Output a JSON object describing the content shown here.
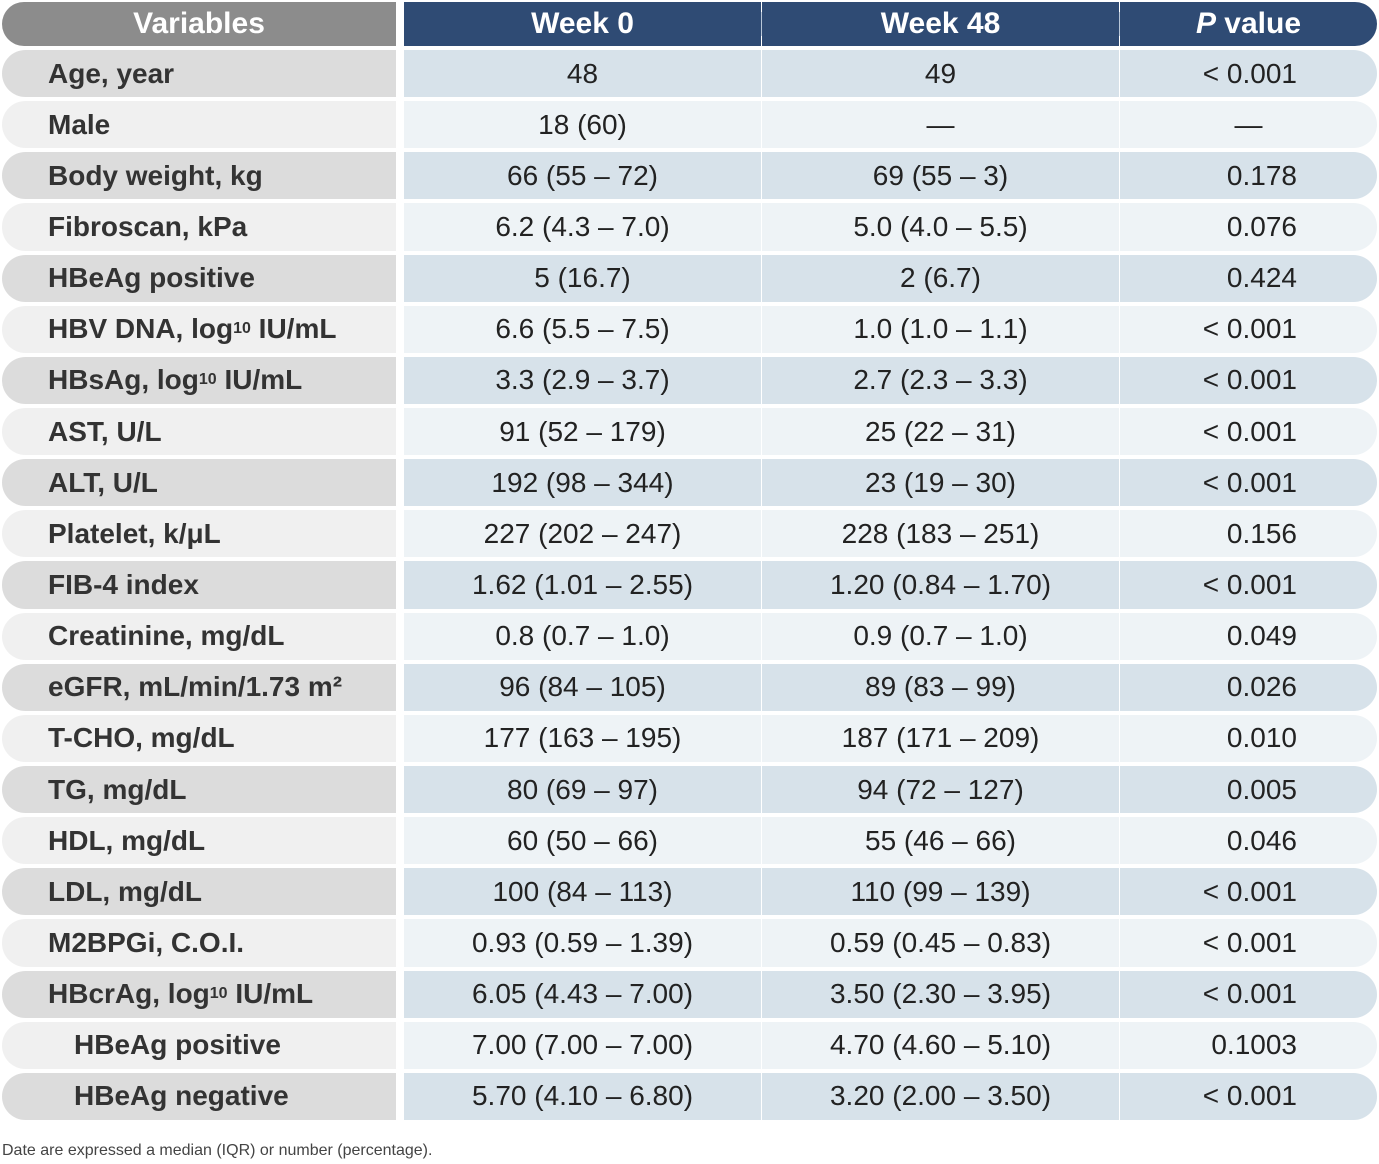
{
  "table": {
    "header": [
      "Variables",
      "Week 0",
      "Week 48",
      {
        "italic": "P",
        "rest": " value"
      }
    ],
    "rows": [
      {
        "variable": "Age, year",
        "week0": "48",
        "week48": "49",
        "p": "< 0.001"
      },
      {
        "variable": "Male",
        "week0": "18 (60)",
        "week48": "—",
        "p": "—"
      },
      {
        "variable": "Body weight, kg",
        "week0": "66 (55 – 72)",
        "week48": "69 (55 – 3)",
        "p": "0.178"
      },
      {
        "variable": "Fibroscan, kPa",
        "week0": "6.2 (4.3 – 7.0)",
        "week48": "5.0 (4.0 – 5.5)",
        "p": "0.076"
      },
      {
        "variable": "HBeAg positive",
        "week0": "5 (16.7)",
        "week48": "2 (6.7)",
        "p": "0.424"
      },
      {
        "variable": {
          "text": "HBV DNA, log",
          "sub": "10",
          "tail": " IU/mL"
        },
        "week0": "6.6 (5.5 – 7.5)",
        "week48": "1.0 (1.0 – 1.1)",
        "p": "< 0.001"
      },
      {
        "variable": {
          "text": "HBsAg, log",
          "sub": "10",
          "tail": " IU/mL"
        },
        "week0": "3.3 (2.9 – 3.7)",
        "week48": "2.7 (2.3 – 3.3)",
        "p": "< 0.001"
      },
      {
        "variable": "AST, U/L",
        "week0": "91 (52 – 179)",
        "week48": "25 (22 – 31)",
        "p": "< 0.001"
      },
      {
        "variable": "ALT, U/L",
        "week0": "192 (98 – 344)",
        "week48": "23 (19 – 30)",
        "p": "< 0.001"
      },
      {
        "variable": "Platelet, k/μL",
        "week0": "227 (202 – 247)",
        "week48": "228 (183 – 251)",
        "p": "0.156"
      },
      {
        "variable": "FIB-4 index",
        "week0": "1.62 (1.01 – 2.55)",
        "week48": "1.20 (0.84 – 1.70)",
        "p": "< 0.001"
      },
      {
        "variable": "Creatinine, mg/dL",
        "week0": "0.8 (0.7 – 1.0)",
        "week48": "0.9 (0.7 – 1.0)",
        "p": "0.049"
      },
      {
        "variable": "eGFR, mL/min/1.73 m²",
        "week0": "96 (84 – 105)",
        "week48": "89 (83 – 99)",
        "p": "0.026"
      },
      {
        "variable": "T-CHO, mg/dL",
        "week0": "177 (163 – 195)",
        "week48": "187 (171 – 209)",
        "p": "0.010"
      },
      {
        "variable": "TG, mg/dL",
        "week0": "80 (69 – 97)",
        "week48": "94 (72 – 127)",
        "p": "0.005"
      },
      {
        "variable": "HDL, mg/dL",
        "week0": "60 (50 – 66)",
        "week48": "55 (46 – 66)",
        "p": "0.046"
      },
      {
        "variable": "LDL, mg/dL",
        "week0": "100 (84 – 113)",
        "week48": "110 (99 – 139)",
        "p": "< 0.001"
      },
      {
        "variable": "M2BPGi, C.O.I.",
        "week0": "0.93 (0.59 – 1.39)",
        "week48": "0.59 (0.45 – 0.83)",
        "p": "< 0.001"
      },
      {
        "variable": {
          "text": "HBcrAg, log",
          "sub": "10",
          "tail": " IU/mL"
        },
        "week0": "6.05 (4.43 – 7.00)",
        "week48": "3.50 (2.30 – 3.95)",
        "p": "< 0.001",
        "subrows": [
          {
            "variable": "HBeAg positive",
            "week0": "7.00 (7.00 – 7.00)",
            "week48": "4.70 (4.60 – 5.10)",
            "p": "0.1003"
          },
          {
            "variable": "HBeAg negative",
            "week0": "5.70 (4.10 – 6.80)",
            "week48": "3.20 (2.00 – 3.50)",
            "p": "< 0.001"
          }
        ]
      }
    ],
    "footnote": "Date are expressed a median (IQR) or number (percentage)."
  }
}
